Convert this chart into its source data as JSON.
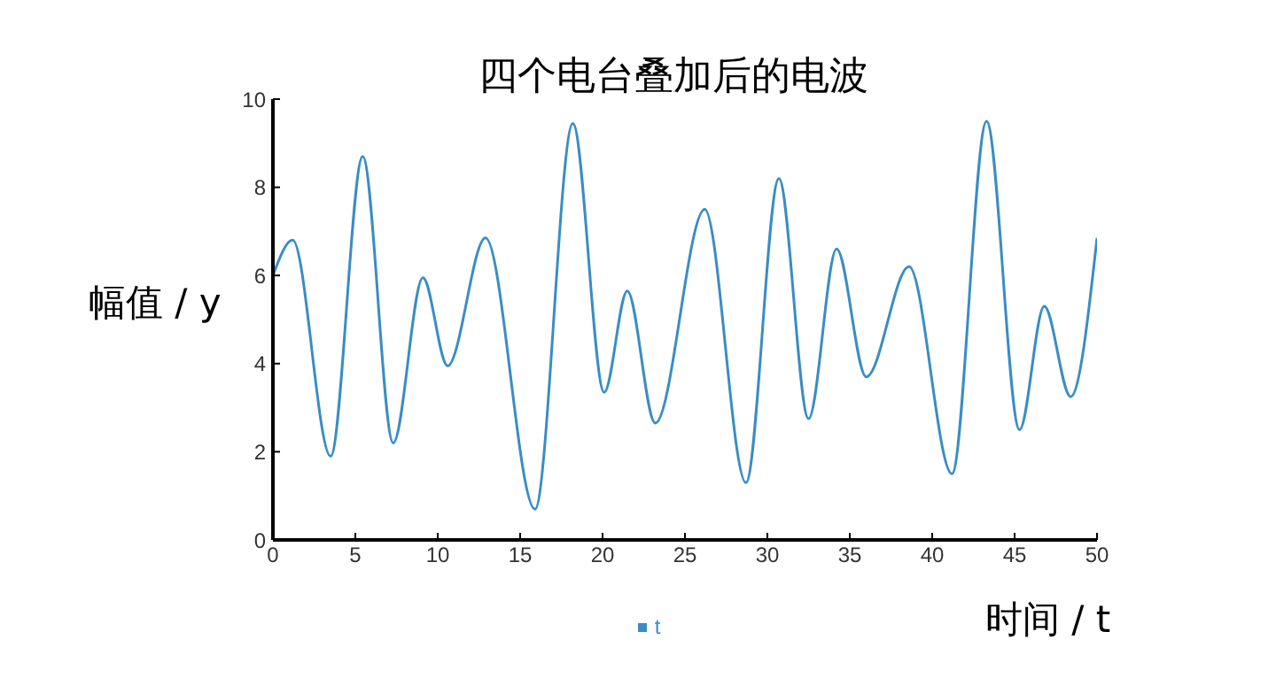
{
  "chart_data": {
    "type": "line",
    "title": "四个电台叠加后的电波",
    "xlabel": "时间 / t",
    "ylabel": "幅值 / y",
    "x": [
      0,
      1.2,
      3.5,
      5.45,
      7.3,
      9.1,
      10.6,
      12.9,
      15.9,
      18.2,
      20.1,
      21.5,
      23.2,
      26.2,
      28.7,
      30.7,
      32.5,
      34.2,
      36.0,
      38.6,
      41.2,
      43.3,
      45.3,
      46.8,
      48.4,
      50
    ],
    "series": [
      {
        "name": "t",
        "color": "#3a8dc4",
        "values": [
          6.0,
          6.8,
          1.9,
          8.7,
          2.2,
          5.95,
          3.95,
          6.85,
          0.7,
          9.45,
          3.35,
          5.65,
          2.65,
          7.5,
          1.3,
          8.2,
          2.75,
          6.6,
          3.7,
          6.2,
          1.5,
          9.5,
          2.5,
          5.3,
          3.25,
          6.85
        ]
      }
    ],
    "xlim": [
      0,
      50
    ],
    "xticks": [
      0,
      5,
      10,
      15,
      20,
      25,
      30,
      35,
      40,
      45,
      50
    ],
    "ylim": [
      0,
      10
    ],
    "yticks": [
      0,
      2,
      4,
      6,
      8,
      10
    ],
    "grid": false,
    "legend": "bottom",
    "marker": "none",
    "line_style": "solid"
  }
}
